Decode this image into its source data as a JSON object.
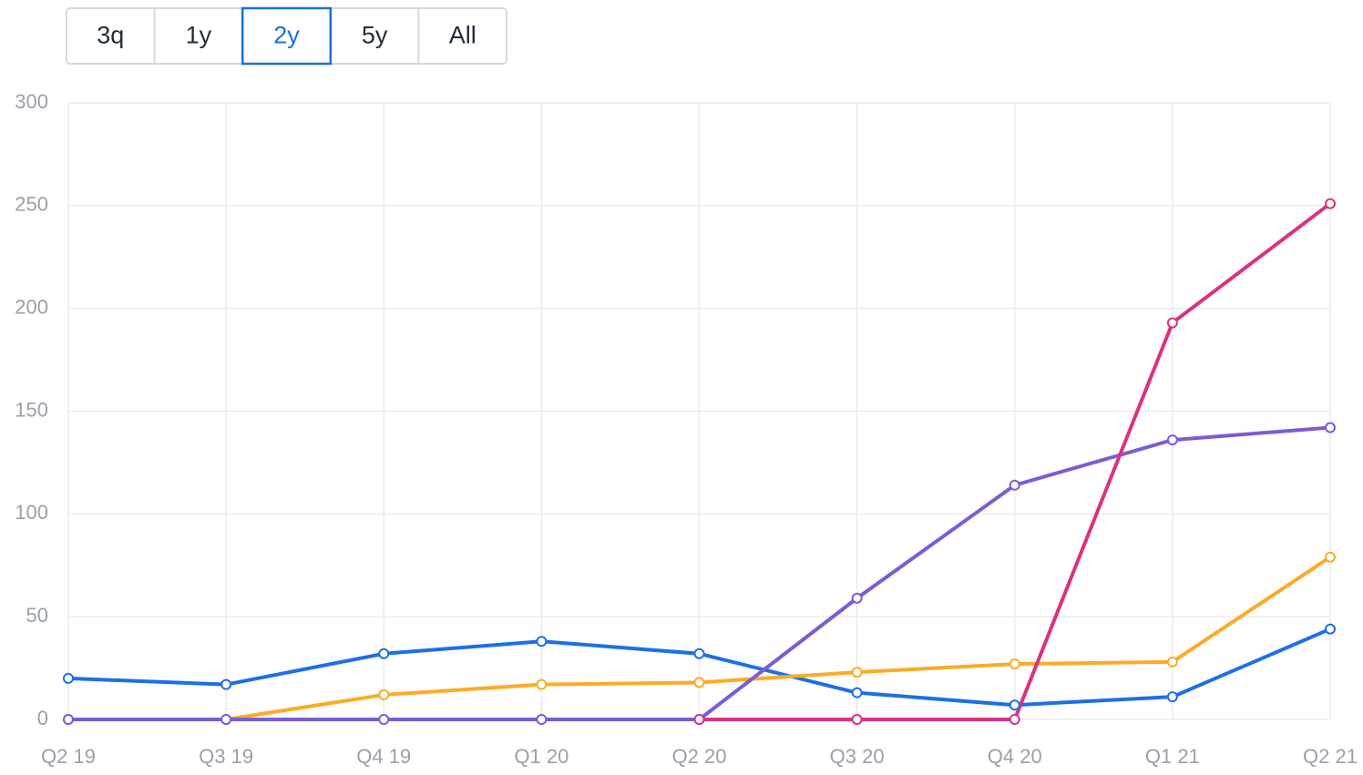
{
  "range_buttons": {
    "labels": [
      "3q",
      "1y",
      "2y",
      "5y",
      "All"
    ],
    "selected": "2y"
  },
  "chart_data": {
    "type": "line",
    "categories": [
      "Q2 19",
      "Q3 19",
      "Q4 19",
      "Q1 20",
      "Q2 20",
      "Q3 20",
      "Q4 20",
      "Q1 21",
      "Q2 21"
    ],
    "series": [
      {
        "color": "#1e6fe6",
        "values": [
          20,
          17,
          32,
          38,
          32,
          13,
          7,
          11,
          44
        ]
      },
      {
        "color": "#fbab25",
        "values": [
          0,
          0,
          12,
          17,
          18,
          23,
          27,
          28,
          79
        ]
      },
      {
        "color": "#7b5bd6",
        "values": [
          0,
          0,
          0,
          0,
          0,
          59,
          114,
          136,
          142
        ]
      },
      {
        "color": "#d9337f",
        "values": [
          null,
          null,
          null,
          null,
          0,
          0,
          0,
          193,
          251
        ]
      }
    ],
    "ylim": [
      0,
      300
    ],
    "yticks": [
      0,
      50,
      100,
      150,
      200,
      250,
      300
    ],
    "grid": true
  }
}
